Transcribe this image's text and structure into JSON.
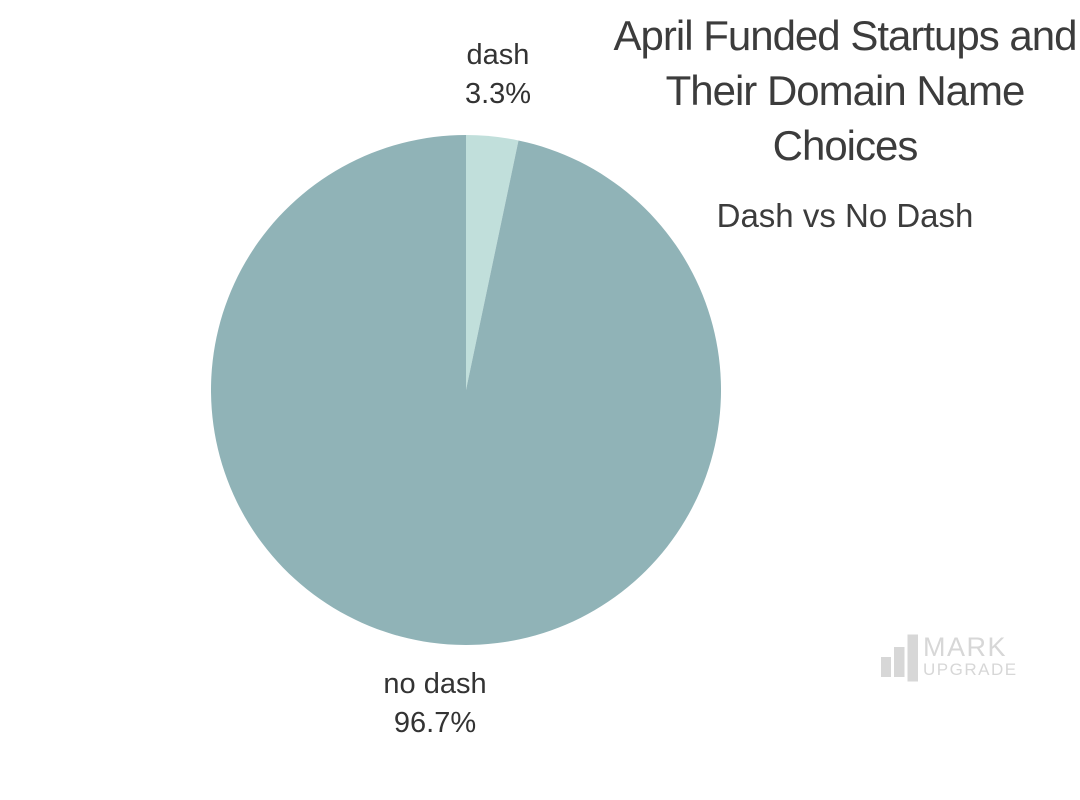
{
  "page": {
    "background_color": "#ffffff",
    "text_color": "#3c3c3c"
  },
  "title": {
    "lines": [
      "April Funded Startups and",
      "Their Domain Name",
      "Choices"
    ],
    "subtitle": "Dash vs No Dash"
  },
  "chart_data": {
    "type": "pie",
    "title": "April Funded Startups and Their Domain Name Choices",
    "subtitle": "Dash vs No Dash",
    "categories": [
      "dash",
      "no dash"
    ],
    "values": [
      3.3,
      96.7
    ],
    "unit": "%",
    "start_angle_deg": 0,
    "direction": "clockwise",
    "legend": "none",
    "labels_position": "outside",
    "slices": [
      {
        "label": "dash",
        "value": 3.3,
        "display": "3.3%",
        "color": "#c1dfdb"
      },
      {
        "label": "no dash",
        "value": 96.7,
        "display": "96.7%",
        "color": "#90b3b7"
      }
    ]
  },
  "watermark": {
    "icon": "bar-chart-icon",
    "line1": "MARK",
    "line2": "UPGRADE",
    "color": "#d7d7d7"
  }
}
